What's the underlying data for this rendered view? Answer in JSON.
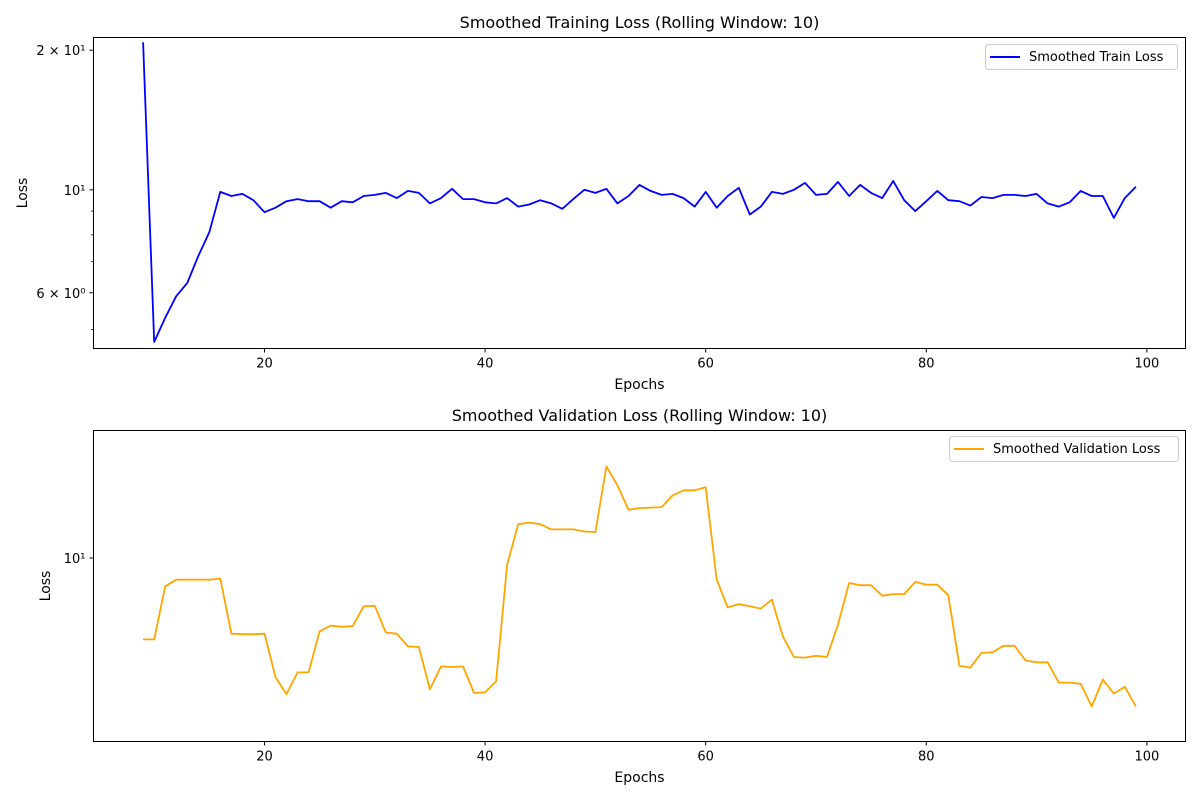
{
  "chart_data": [
    {
      "type": "line",
      "title": "Smoothed Training Loss (Rolling Window: 10)",
      "xlabel": "Epochs",
      "ylabel": "Loss",
      "yscale": "log",
      "xlim": [
        4.5,
        103.5
      ],
      "ylim": [
        4.55,
        21.3
      ],
      "xticks": [
        20,
        40,
        60,
        80,
        100
      ],
      "xtick_labels": [
        "20",
        "40",
        "60",
        "80",
        "100"
      ],
      "yticks": [
        6,
        10,
        20
      ],
      "ytick_labels": [
        "6 × 10⁰",
        "10¹",
        "2 × 10¹"
      ],
      "minor_yticks": [
        5,
        7,
        8,
        9
      ],
      "legend_position": "top-right",
      "series": [
        {
          "name": "Smoothed Train Loss",
          "color": "#0000ff",
          "x": [
            9,
            10,
            11,
            12,
            13,
            14,
            15,
            16,
            17,
            18,
            19,
            20,
            21,
            22,
            23,
            24,
            25,
            26,
            27,
            28,
            29,
            30,
            31,
            32,
            33,
            34,
            35,
            36,
            37,
            38,
            39,
            40,
            41,
            42,
            43,
            44,
            45,
            46,
            47,
            48,
            49,
            50,
            51,
            52,
            53,
            54,
            55,
            56,
            57,
            58,
            59,
            60,
            61,
            62,
            63,
            64,
            65,
            66,
            67,
            68,
            69,
            70,
            71,
            72,
            73,
            74,
            75,
            76,
            77,
            78,
            79,
            80,
            81,
            82,
            83,
            84,
            85,
            86,
            87,
            88,
            89,
            90,
            91,
            92,
            93,
            94,
            95,
            96,
            97,
            98,
            99
          ],
          "y": [
            20.8,
            4.7,
            5.3,
            5.9,
            6.3,
            7.2,
            8.1,
            9.9,
            9.7,
            9.8,
            9.5,
            8.95,
            9.15,
            9.45,
            9.55,
            9.45,
            9.45,
            9.15,
            9.45,
            9.4,
            9.7,
            9.75,
            9.85,
            9.6,
            9.95,
            9.85,
            9.35,
            9.6,
            10.05,
            9.55,
            9.55,
            9.4,
            9.35,
            9.6,
            9.2,
            9.3,
            9.5,
            9.35,
            9.1,
            9.55,
            10.0,
            9.85,
            10.05,
            9.35,
            9.7,
            10.25,
            9.95,
            9.75,
            9.8,
            9.6,
            9.2,
            9.9,
            9.15,
            9.7,
            10.1,
            8.85,
            9.2,
            9.9,
            9.8,
            10.0,
            10.35,
            9.75,
            9.8,
            10.4,
            9.7,
            10.25,
            9.85,
            9.6,
            10.45,
            9.5,
            9.0,
            9.45,
            9.95,
            9.5,
            9.45,
            9.25,
            9.65,
            9.6,
            9.75,
            9.75,
            9.7,
            9.8,
            9.35,
            9.2,
            9.4,
            9.95,
            9.7,
            9.7,
            8.7,
            9.6,
            10.15
          ]
        }
      ]
    },
    {
      "type": "line",
      "title": "Smoothed Validation Loss (Rolling Window: 10)",
      "xlabel": "Epochs",
      "ylabel": "Loss",
      "yscale": "log",
      "xlim": [
        4.5,
        103.5
      ],
      "ylim": [
        8.43,
        11.26
      ],
      "xticks": [
        20,
        40,
        60,
        80,
        100
      ],
      "xtick_labels": [
        "20",
        "40",
        "60",
        "80",
        "100"
      ],
      "yticks": [
        10
      ],
      "ytick_labels": [
        "10¹"
      ],
      "legend_position": "top-right",
      "series": [
        {
          "name": "Smoothed Validation Loss",
          "color": "#ffa500",
          "x": [
            9,
            10,
            11,
            12,
            13,
            14,
            15,
            16,
            17,
            18,
            19,
            20,
            21,
            22,
            23,
            24,
            25,
            26,
            27,
            28,
            29,
            30,
            31,
            32,
            33,
            34,
            35,
            36,
            37,
            38,
            39,
            40,
            41,
            42,
            43,
            44,
            45,
            46,
            47,
            48,
            49,
            50,
            51,
            52,
            53,
            54,
            55,
            56,
            57,
            58,
            59,
            60,
            61,
            62,
            63,
            64,
            65,
            66,
            67,
            68,
            69,
            70,
            71,
            72,
            73,
            74,
            75,
            76,
            77,
            78,
            79,
            80,
            81,
            82,
            83,
            84,
            85,
            86,
            87,
            88,
            89,
            90,
            91,
            92,
            93,
            94,
            95,
            96,
            97,
            98,
            99
          ],
          "y": [
            9.27,
            9.27,
            9.74,
            9.8,
            9.8,
            9.8,
            9.8,
            9.81,
            9.32,
            9.315,
            9.315,
            9.32,
            8.95,
            8.81,
            8.99,
            8.99,
            9.34,
            9.39,
            9.38,
            9.385,
            9.56,
            9.565,
            9.33,
            9.32,
            9.21,
            9.205,
            8.85,
            9.04,
            9.035,
            9.04,
            8.82,
            8.825,
            8.915,
            9.935,
            10.32,
            10.335,
            10.32,
            10.27,
            10.27,
            10.27,
            10.25,
            10.245,
            10.89,
            10.7,
            10.46,
            10.475,
            10.48,
            10.485,
            10.6,
            10.65,
            10.65,
            10.68,
            9.8,
            9.55,
            9.58,
            9.56,
            9.54,
            9.62,
            9.295,
            9.12,
            9.115,
            9.13,
            9.12,
            9.4,
            9.77,
            9.75,
            9.75,
            9.655,
            9.67,
            9.67,
            9.78,
            9.755,
            9.755,
            9.66,
            9.045,
            9.03,
            9.155,
            9.16,
            9.215,
            9.215,
            9.09,
            9.075,
            9.075,
            8.905,
            8.905,
            8.895,
            8.71,
            8.93,
            8.815,
            8.87,
            8.71
          ]
        }
      ]
    }
  ]
}
